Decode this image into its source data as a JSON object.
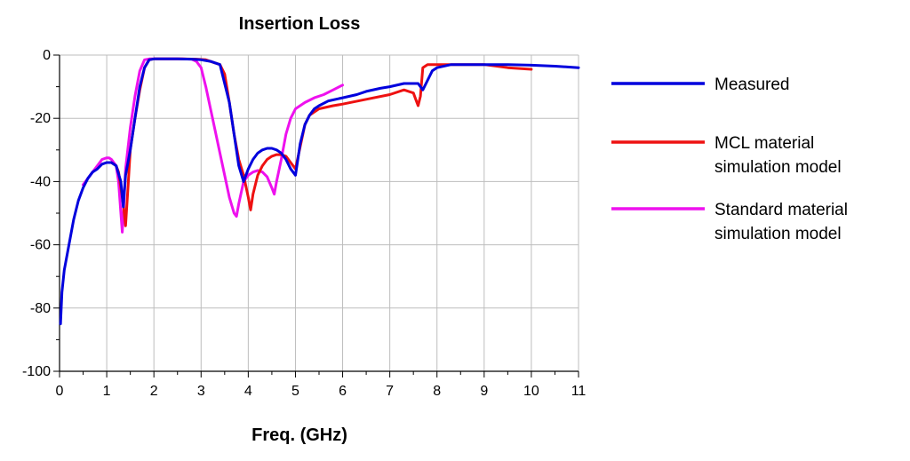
{
  "chart_data": {
    "type": "line",
    "title": "Insertion Loss",
    "xlabel": "Freq. (GHz)",
    "ylabel": "",
    "xlim": [
      0,
      11
    ],
    "ylim": [
      -100,
      0
    ],
    "xticks": [
      0,
      1,
      2,
      3,
      4,
      5,
      6,
      7,
      8,
      9,
      10,
      11
    ],
    "yticks": [
      0,
      -20,
      -40,
      -60,
      -80,
      -100
    ],
    "xtick_labels": [
      "0",
      "1",
      "2",
      "3",
      "4",
      "5",
      "6",
      "7",
      "8",
      "9",
      "10",
      "11"
    ],
    "ytick_labels": [
      "0",
      "-20",
      "-40",
      "-60",
      "-80",
      "-100"
    ],
    "grid": true,
    "legend_position": "right",
    "series": [
      {
        "name": "Measured",
        "color": "#0000dd",
        "x": [
          0.02,
          0.05,
          0.1,
          0.2,
          0.3,
          0.4,
          0.5,
          0.6,
          0.7,
          0.8,
          0.9,
          1.0,
          1.1,
          1.2,
          1.3,
          1.35,
          1.4,
          1.45,
          1.5,
          1.6,
          1.7,
          1.8,
          1.9,
          2.0,
          2.2,
          2.5,
          2.8,
          3.0,
          3.2,
          3.4,
          3.6,
          3.7,
          3.8,
          3.9,
          4.0,
          4.1,
          4.2,
          4.3,
          4.4,
          4.5,
          4.6,
          4.7,
          4.8,
          4.9,
          5.0,
          5.1,
          5.2,
          5.3,
          5.4,
          5.5,
          5.7,
          6.0,
          6.3,
          6.5,
          6.8,
          7.0,
          7.3,
          7.5,
          7.6,
          7.7,
          7.8,
          7.9,
          8.0,
          8.3,
          8.5,
          9.0,
          9.5,
          10.0,
          10.5,
          11.0
        ],
        "y": [
          -85,
          -75,
          -68,
          -60,
          -52,
          -46,
          -42,
          -39,
          -37,
          -36,
          -34.5,
          -34,
          -34,
          -35,
          -40,
          -48,
          -38,
          -34,
          -30,
          -20,
          -10,
          -4,
          -1.5,
          -1.2,
          -1.2,
          -1.2,
          -1.3,
          -1.5,
          -2,
          -3,
          -15,
          -25,
          -35,
          -40,
          -36,
          -33,
          -31,
          -30,
          -29.5,
          -29.5,
          -30,
          -31,
          -33,
          -36,
          -38,
          -28,
          -22,
          -19,
          -17,
          -16,
          -14.5,
          -13.5,
          -12.5,
          -11.5,
          -10.5,
          -10,
          -9,
          -9,
          -9,
          -11,
          -8,
          -5,
          -4,
          -3,
          -3,
          -3,
          -3,
          -3.2,
          -3.5,
          -4
        ]
      },
      {
        "name": "MCL material simulation model",
        "color": "#ee1111",
        "x": [
          1.0,
          1.1,
          1.2,
          1.25,
          1.3,
          1.35,
          1.4,
          1.45,
          1.5,
          1.6,
          1.7,
          1.8,
          1.9,
          2.0,
          2.3,
          2.6,
          2.9,
          3.1,
          3.3,
          3.4,
          3.5,
          3.6,
          3.7,
          3.8,
          3.9,
          4.0,
          4.05,
          4.1,
          4.2,
          4.3,
          4.4,
          4.5,
          4.6,
          4.7,
          4.8,
          4.9,
          5.0,
          5.1,
          5.2,
          5.3,
          5.5,
          5.8,
          6.0,
          6.5,
          7.0,
          7.3,
          7.5,
          7.55,
          7.6,
          7.65,
          7.7,
          7.8,
          8.0,
          8.5,
          9.0,
          9.5,
          10.0
        ],
        "y": [
          -34,
          -34,
          -35,
          -37,
          -42,
          -47,
          -54,
          -42,
          -30,
          -20,
          -11,
          -4,
          -1.5,
          -1.2,
          -1.2,
          -1.2,
          -1.3,
          -1.5,
          -2.5,
          -3,
          -6,
          -15,
          -25,
          -33,
          -38,
          -45,
          -49,
          -44,
          -38,
          -35,
          -33,
          -32,
          -31.5,
          -31.5,
          -32,
          -34,
          -36,
          -29,
          -22,
          -19,
          -17,
          -16,
          -15.5,
          -14,
          -12.5,
          -11,
          -12,
          -14,
          -16,
          -13,
          -4,
          -3,
          -3,
          -3,
          -3,
          -4,
          -4.5
        ]
      },
      {
        "name": "Standard material simulation model",
        "color": "#ee11ee",
        "x": [
          0.5,
          0.6,
          0.7,
          0.8,
          0.9,
          1.0,
          1.05,
          1.1,
          1.2,
          1.25,
          1.3,
          1.33,
          1.36,
          1.4,
          1.5,
          1.6,
          1.7,
          1.8,
          1.9,
          2.0,
          2.2,
          2.5,
          2.8,
          2.9,
          3.0,
          3.1,
          3.2,
          3.3,
          3.4,
          3.5,
          3.6,
          3.7,
          3.75,
          3.8,
          3.9,
          4.0,
          4.1,
          4.2,
          4.3,
          4.4,
          4.5,
          4.55,
          4.6,
          4.7,
          4.8,
          4.9,
          5.0,
          5.2,
          5.4,
          5.6,
          5.8,
          6.0
        ],
        "y": [
          -41,
          -39,
          -37,
          -35,
          -33,
          -32.5,
          -32.5,
          -33,
          -35,
          -40,
          -50,
          -56,
          -48,
          -36,
          -23,
          -13,
          -5,
          -1.5,
          -1.2,
          -1.2,
          -1.2,
          -1.2,
          -1.3,
          -2,
          -4,
          -10,
          -17,
          -24,
          -31,
          -38,
          -45,
          -50,
          -51,
          -47,
          -40,
          -38,
          -37,
          -36.5,
          -37,
          -38.5,
          -42,
          -44,
          -40,
          -33,
          -25,
          -20,
          -17,
          -15,
          -13.5,
          -12.5,
          -11,
          -9.5
        ]
      }
    ]
  }
}
